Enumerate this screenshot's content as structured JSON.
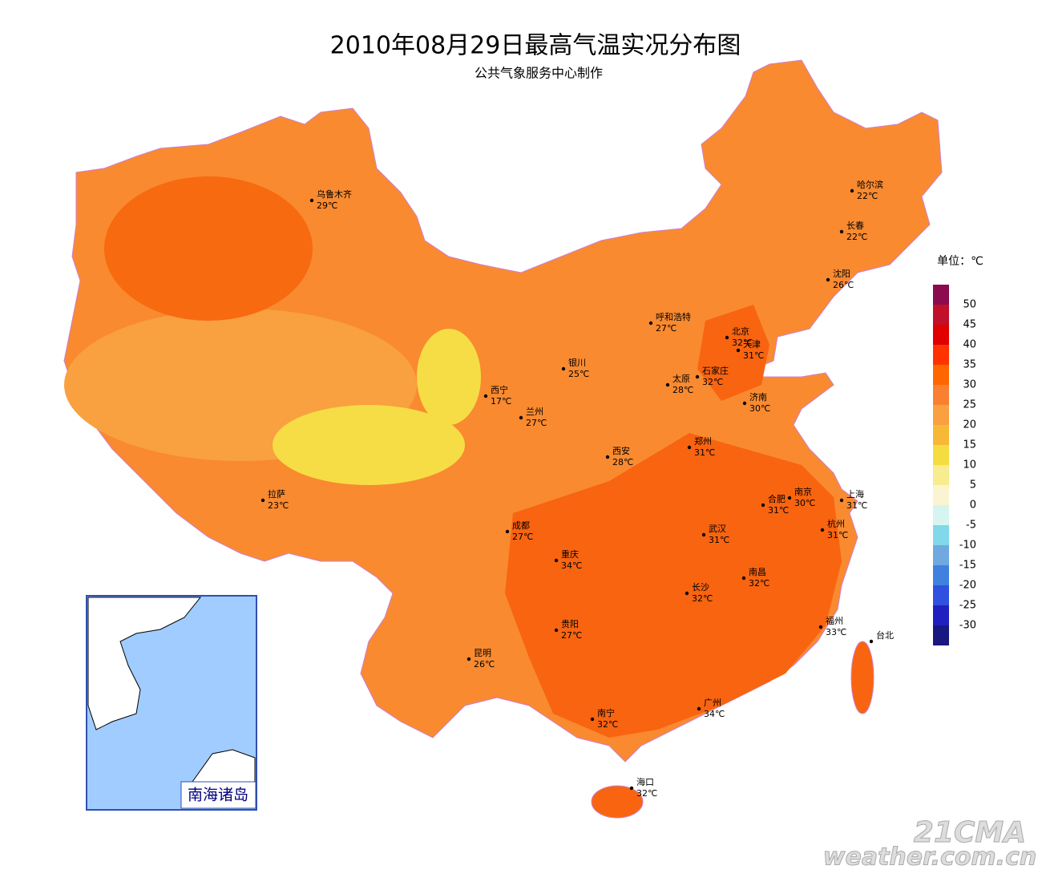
{
  "header": {
    "title": "2010年08月29日最高气温实况分布图",
    "subtitle": "公共气象服务中心制作"
  },
  "cities": [
    {
      "name": "乌鲁木齐",
      "temp": "29℃"
    },
    {
      "name": "哈尔滨",
      "temp": "22℃"
    },
    {
      "name": "长春",
      "temp": "22℃"
    },
    {
      "name": "沈阳",
      "temp": "26℃"
    },
    {
      "name": "呼和浩特",
      "temp": "27℃"
    },
    {
      "name": "北京",
      "temp": "32℃"
    },
    {
      "name": "天津",
      "temp": "31℃"
    },
    {
      "name": "银川",
      "temp": "25℃"
    },
    {
      "name": "太原",
      "temp": "28℃"
    },
    {
      "name": "石家庄",
      "temp": "32℃"
    },
    {
      "name": "西宁",
      "temp": "17℃"
    },
    {
      "name": "济南",
      "temp": "30℃"
    },
    {
      "name": "兰州",
      "temp": "27℃"
    },
    {
      "name": "郑州",
      "temp": "31℃"
    },
    {
      "name": "西安",
      "temp": "28℃"
    },
    {
      "name": "拉萨",
      "temp": "23℃"
    },
    {
      "name": "合肥",
      "temp": "31℃"
    },
    {
      "name": "南京",
      "temp": "30℃"
    },
    {
      "name": "上海",
      "temp": "31℃"
    },
    {
      "name": "成都",
      "temp": "27℃"
    },
    {
      "name": "武汉",
      "temp": "31℃"
    },
    {
      "name": "杭州",
      "temp": "31℃"
    },
    {
      "name": "重庆",
      "temp": "34℃"
    },
    {
      "name": "南昌",
      "temp": "32℃"
    },
    {
      "name": "长沙",
      "temp": "32℃"
    },
    {
      "name": "贵阳",
      "temp": "27℃"
    },
    {
      "name": "福州",
      "temp": "33℃"
    },
    {
      "name": "台北"
    },
    {
      "name": "昆明",
      "temp": "26℃"
    },
    {
      "name": "广州",
      "temp": "34℃"
    },
    {
      "name": "南宁",
      "temp": "32℃"
    },
    {
      "name": "海口",
      "temp": "32℃"
    }
  ],
  "legend": {
    "unit": "单位：℃",
    "ticks": [
      50,
      45,
      40,
      35,
      30,
      25,
      20,
      15,
      10,
      5,
      0,
      -5,
      -10,
      -15,
      -20,
      -25,
      -30
    ],
    "colors": [
      "#8b0a50",
      "#c0102a",
      "#e00000",
      "#ff3300",
      "#ff6600",
      "#f98030",
      "#f9a040",
      "#f7b838",
      "#f5dc40",
      "#f8ec90",
      "#faf5d0",
      "#d6f5f0",
      "#80d8e8",
      "#70a8e0",
      "#4080e0",
      "#3050e0",
      "#2020c0",
      "#181880"
    ]
  },
  "inset": {
    "label": "南海诸岛"
  },
  "watermark": {
    "logo": "21CMA",
    "site": "weather.com.cn"
  }
}
